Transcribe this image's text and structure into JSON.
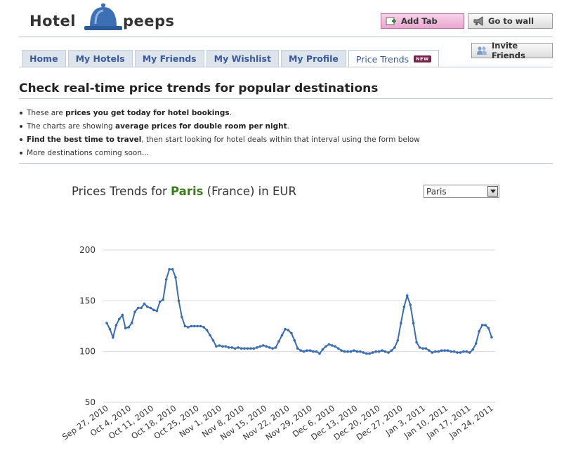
{
  "logo": {
    "word1": "Hotel",
    "word2": "peeps"
  },
  "header": {
    "add_tab": "Add Tab",
    "go_to_wall": "Go to wall",
    "invite_friends": "Invite Friends"
  },
  "tabs": [
    {
      "label": "Home"
    },
    {
      "label": "My Hotels"
    },
    {
      "label": "My Friends"
    },
    {
      "label": "My Wishlist"
    },
    {
      "label": "My Profile"
    },
    {
      "label": "Price Trends",
      "badge": "NEW"
    }
  ],
  "page": {
    "heading": "Check real-time price trends for popular destinations"
  },
  "bullets": {
    "b1_pre": "These are ",
    "b1_bold": "prices you get today for hotel bookings",
    "b1_post": ".",
    "b2_pre": "The charts are showing ",
    "b2_bold": "average prices for double room per night",
    "b2_post": ".",
    "b3_bold": "Find the best time to travel",
    "b3_post": ", then start looking for hotel deals within that interval using the form below",
    "b4": "More destinations coming soon..."
  },
  "chart_header": {
    "pre": "Prices Trends for ",
    "city": "Paris",
    "post": " (France) in EUR",
    "selected_city": "Paris"
  },
  "colors": {
    "line": "#3c6cb0",
    "city": "#3a7d1a",
    "grid": "#d8d8d8"
  },
  "chart_data": {
    "type": "line",
    "title": "Prices Trends for Paris (France) in EUR",
    "ylim": [
      50,
      200
    ],
    "yticks": [
      50,
      100,
      150,
      200
    ],
    "xtick_labels": [
      "Sep 27, 2010",
      "Oct 4, 2010",
      "Oct 11, 2010",
      "Oct 18, 2010",
      "Oct 25, 2010",
      "Nov 1, 2010",
      "Nov 8, 2010",
      "Nov 15, 2010",
      "Nov 22, 2010",
      "Nov 29, 2010",
      "Dec 6, 2010",
      "Dec 13, 2010",
      "Dec 20, 2010",
      "Dec 27, 2010",
      "Jan 3, 2011",
      "Jan 10, 2011",
      "Jan 17, 2011",
      "Jan 24, 2011"
    ],
    "grid": true,
    "series": [
      {
        "values": [
          128,
          122,
          114,
          126,
          132,
          136,
          123,
          124,
          128,
          139,
          143,
          143,
          147,
          144,
          143,
          141,
          140,
          149,
          151,
          171,
          181,
          181,
          173,
          150,
          134,
          125,
          124,
          125,
          125,
          125,
          125,
          124,
          121,
          116,
          111,
          105,
          106,
          105,
          105,
          104,
          104,
          103,
          104,
          103,
          103,
          103,
          103,
          103,
          104,
          105,
          106,
          105,
          104,
          103,
          104,
          110,
          116,
          122,
          121,
          118,
          111,
          103,
          101,
          100,
          101,
          101,
          100,
          100,
          98,
          102,
          105,
          107,
          106,
          105,
          103,
          101,
          100,
          100,
          100,
          101,
          100,
          100,
          99,
          98,
          98,
          99,
          100,
          100,
          101,
          100,
          99,
          101,
          104,
          111,
          128,
          144,
          155,
          146,
          128,
          109,
          104,
          103,
          103,
          101,
          99,
          100,
          100,
          101,
          101,
          101,
          100,
          100,
          99,
          99,
          100,
          100,
          99,
          102,
          108,
          120,
          126,
          126,
          123,
          114
        ]
      }
    ]
  }
}
